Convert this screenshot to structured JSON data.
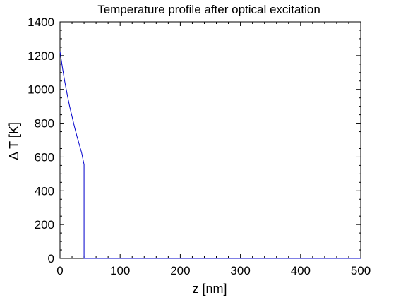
{
  "chart_data": {
    "type": "line",
    "title": "Temperature profile after optical excitation",
    "xlabel": "z [nm]",
    "ylabel": "Δ T [K]",
    "xlim": [
      0,
      500
    ],
    "ylim": [
      0,
      1400
    ],
    "xticks": [
      0,
      100,
      200,
      300,
      400,
      500
    ],
    "yticks": [
      0,
      200,
      400,
      600,
      800,
      1000,
      1200,
      1400
    ],
    "xtick_labels": [
      "0",
      "100",
      "200",
      "300",
      "400",
      "500"
    ],
    "ytick_labels": [
      "0",
      "200",
      "400",
      "600",
      "800",
      "1000",
      "1200",
      "1400"
    ],
    "grid": false,
    "legend": "none",
    "series": [
      {
        "color": "#0000cc",
        "x": [
          0,
          4,
          8,
          12,
          16,
          20,
          24,
          28,
          32,
          36,
          40,
          40,
          40.5,
          500
        ],
        "y": [
          1225,
          1130,
          1045,
          970,
          900,
          840,
          780,
          725,
          675,
          625,
          555,
          0,
          0,
          0
        ]
      }
    ],
    "colors": {
      "line": "#0000cc",
      "axes": "#000000",
      "background": "#ffffff"
    }
  }
}
